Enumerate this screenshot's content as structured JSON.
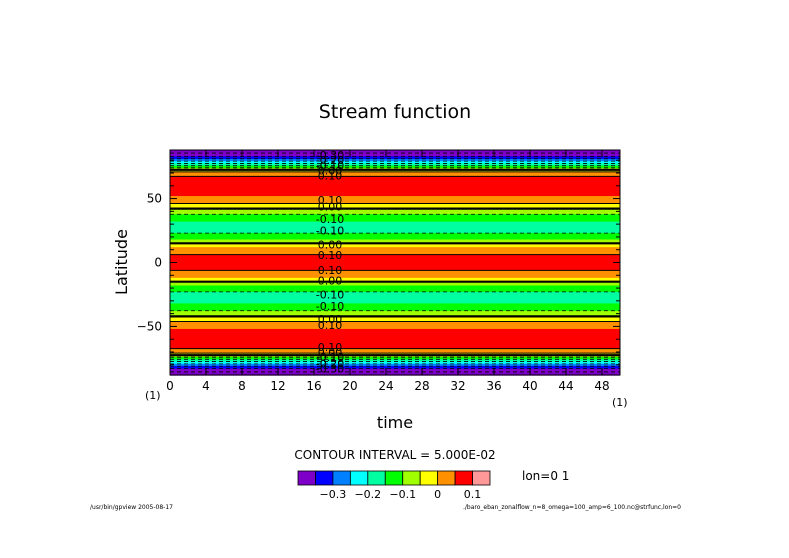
{
  "chart_data": {
    "type": "heatmap",
    "title": "Stream function",
    "xlabel": "time",
    "ylabel": "Latitude",
    "x_unit": "(1)",
    "y_unit": "(1)",
    "xlim": [
      0,
      50
    ],
    "ylim": [
      -88,
      88
    ],
    "x_ticks": [
      0,
      4,
      8,
      12,
      16,
      20,
      24,
      28,
      32,
      36,
      40,
      44,
      48
    ],
    "y_ticks": [
      50,
      0,
      -50
    ],
    "y_tick_labels": [
      "50",
      "0",
      "−50"
    ],
    "contour_interval_label": "CONTOUR INTERVAL = 5.000E-02",
    "slice_label": "lon=0 1",
    "levels": [
      -0.35,
      -0.3,
      -0.25,
      -0.2,
      -0.15,
      -0.1,
      -0.05,
      0,
      0.05,
      0.1,
      0.15
    ],
    "level_colors": [
      "#7e00c8",
      "#0000ff",
      "#0080ff",
      "#00ffff",
      "#00ffa0",
      "#00ff00",
      "#a0ff00",
      "#ffff00",
      "#ff9000",
      "#ff0000",
      "#ff9898"
    ],
    "colorbar_tick_labels": [
      "−0.3",
      "−0.2",
      "−0.1",
      "0",
      "0.1"
    ],
    "latitude_profile": [
      {
        "lat": -88,
        "value": -0.38
      },
      {
        "lat": -84,
        "value": -0.33
      },
      {
        "lat": -80,
        "value": -0.22
      },
      {
        "lat": -75,
        "value": -0.08
      },
      {
        "lat": -70,
        "value": 0.08
      },
      {
        "lat": -62,
        "value": 0.14
      },
      {
        "lat": -52,
        "value": 0.1
      },
      {
        "lat": -45,
        "value": 0.04
      },
      {
        "lat": -40,
        "value": -0.03
      },
      {
        "lat": -32,
        "value": -0.1
      },
      {
        "lat": -25,
        "value": -0.12
      },
      {
        "lat": -18,
        "value": -0.05
      },
      {
        "lat": -12,
        "value": 0.05
      },
      {
        "lat": -5,
        "value": 0.11
      },
      {
        "lat": 0,
        "value": 0.14
      },
      {
        "lat": 5,
        "value": 0.11
      },
      {
        "lat": 12,
        "value": 0.05
      },
      {
        "lat": 18,
        "value": -0.05
      },
      {
        "lat": 25,
        "value": -0.12
      },
      {
        "lat": 32,
        "value": -0.1
      },
      {
        "lat": 40,
        "value": -0.03
      },
      {
        "lat": 45,
        "value": 0.04
      },
      {
        "lat": 52,
        "value": 0.1
      },
      {
        "lat": 62,
        "value": 0.14
      },
      {
        "lat": 70,
        "value": 0.08
      },
      {
        "lat": 75,
        "value": -0.08
      },
      {
        "lat": 80,
        "value": -0.22
      },
      {
        "lat": 84,
        "value": -0.33
      },
      {
        "lat": 88,
        "value": -0.38
      }
    ],
    "contour_labels": [
      {
        "lat": 84,
        "text": "-0.30"
      },
      {
        "lat": 80,
        "text": "-0.20"
      },
      {
        "lat": 76,
        "text": "-0.10"
      },
      {
        "lat": 72,
        "text": "0.00"
      },
      {
        "lat": 68,
        "text": "0.10"
      },
      {
        "lat": 49,
        "text": "0.10"
      },
      {
        "lat": 44,
        "text": "0.00"
      },
      {
        "lat": 34,
        "text": "-0.10"
      },
      {
        "lat": 25,
        "text": "-0.10"
      },
      {
        "lat": 14,
        "text": "0.00"
      },
      {
        "lat": 6,
        "text": "0.10"
      },
      {
        "lat": -6,
        "text": "0.10"
      },
      {
        "lat": -14,
        "text": "0.00"
      },
      {
        "lat": -25,
        "text": "-0.10"
      },
      {
        "lat": -34,
        "text": "-0.10"
      },
      {
        "lat": -44,
        "text": "0.00"
      },
      {
        "lat": -49,
        "text": "0.10"
      },
      {
        "lat": -66,
        "text": "0.10"
      },
      {
        "lat": -70,
        "text": "0.00"
      },
      {
        "lat": -74,
        "text": "-0.10"
      },
      {
        "lat": -79,
        "text": "-0.20"
      },
      {
        "lat": -83,
        "text": "-0.30"
      }
    ]
  },
  "footer": {
    "left": "/usr/bin/gpview  2005-08-17",
    "right": "./baro_eban_zonalflow_n=8_omega=100_amp=6_100.nc@strfunc,lon=0"
  }
}
